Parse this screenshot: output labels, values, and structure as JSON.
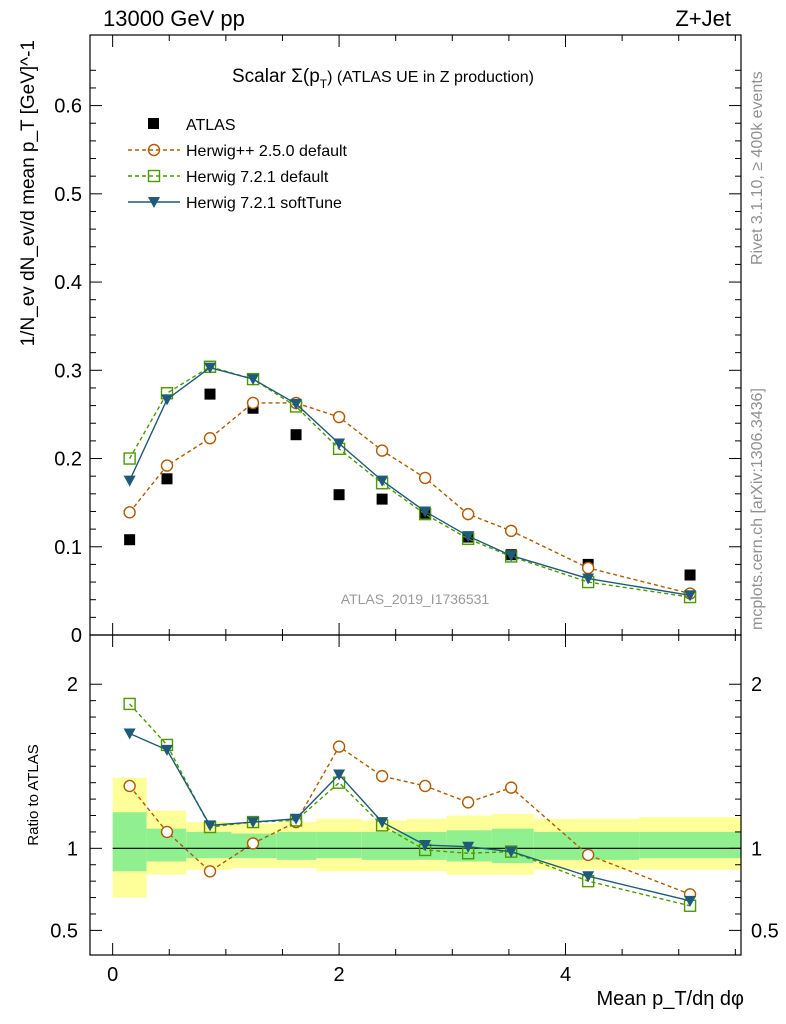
{
  "header": {
    "energy": "13000 GeV pp",
    "process": "Z+Jet"
  },
  "plot": {
    "title_prefix": "Scalar Σ(p",
    "title_sub": "T",
    "title_suffix": ")  (ATLAS UE in Z production)",
    "watermark": "ATLAS_2019_I1736531",
    "rivet_note": "Rivet 3.1.10, ≥ 400k events",
    "mcplots_note": "mcplots.cern.ch [arXiv:1306.3436]"
  },
  "axes": {
    "ylabel_main": "1/N_ev dN_ev/d mean p_T [GeV]^-1",
    "ylabel_ratio": "Ratio to ATLAS",
    "xlabel": "Mean p_T/dη dφ"
  },
  "colors": {
    "atlas": "#000000",
    "h25": "#b35900",
    "h721": "#4d9900",
    "soft": "#1f5a78",
    "band_green": "#90f090",
    "band_yellow": "#ffff99"
  },
  "chart_data": {
    "type": "line",
    "x": [
      0.15,
      0.48,
      0.86,
      1.24,
      1.62,
      2.0,
      2.38,
      2.76,
      3.14,
      3.52,
      4.2,
      5.1
    ],
    "xlim": [
      -0.2,
      5.55
    ],
    "xticks": [
      "0",
      "2",
      "4"
    ],
    "main": {
      "ylim": [
        0,
        0.68
      ],
      "yticks": [
        "0",
        "0.1",
        "0.2",
        "0.3",
        "0.4",
        "0.5",
        "0.6"
      ],
      "series": [
        {
          "name": "ATLAS",
          "values": [
            0.108,
            0.177,
            0.273,
            0.257,
            0.227,
            0.159,
            0.154,
            0.138,
            0.111,
            0.091,
            0.08,
            0.068
          ]
        },
        {
          "name": "Herwig++ 2.5.0 default",
          "values": [
            0.139,
            0.192,
            0.223,
            0.263,
            0.263,
            0.247,
            0.209,
            0.178,
            0.137,
            0.118,
            0.076,
            0.047
          ]
        },
        {
          "name": "Herwig 7.2.1 default",
          "values": [
            0.2,
            0.274,
            0.304,
            0.29,
            0.259,
            0.211,
            0.172,
            0.137,
            0.109,
            0.089,
            0.06,
            0.043
          ]
        },
        {
          "name": "Herwig 7.2.1 softTune",
          "values": [
            0.175,
            0.267,
            0.303,
            0.29,
            0.262,
            0.217,
            0.175,
            0.14,
            0.112,
            0.09,
            0.064,
            0.045
          ]
        }
      ]
    },
    "ratio": {
      "ylim": [
        0.35,
        2.3
      ],
      "yticks": [
        "0.5",
        "1",
        "2"
      ],
      "bands": {
        "edges": [
          0,
          0.3,
          0.65,
          1.05,
          1.45,
          1.8,
          2.2,
          2.6,
          2.95,
          3.35,
          3.72,
          4.65,
          5.55
        ],
        "green": [
          [
            0.86,
            1.22
          ],
          [
            0.92,
            1.12
          ],
          [
            0.94,
            1.1
          ],
          [
            0.94,
            1.09
          ],
          [
            0.93,
            1.1
          ],
          [
            0.94,
            1.1
          ],
          [
            0.93,
            1.1
          ],
          [
            0.93,
            1.1
          ],
          [
            0.92,
            1.11
          ],
          [
            0.91,
            1.12
          ],
          [
            0.93,
            1.1
          ],
          [
            0.94,
            1.1
          ]
        ],
        "yellow": [
          [
            0.7,
            1.43
          ],
          [
            0.84,
            1.23
          ],
          [
            0.87,
            1.16
          ],
          [
            0.88,
            1.15
          ],
          [
            0.88,
            1.16
          ],
          [
            0.86,
            1.18
          ],
          [
            0.86,
            1.17
          ],
          [
            0.86,
            1.18
          ],
          [
            0.84,
            1.2
          ],
          [
            0.84,
            1.21
          ],
          [
            0.87,
            1.18
          ],
          [
            0.87,
            1.19
          ]
        ]
      },
      "series": [
        {
          "name": "Herwig++ 2.5.0 default",
          "values": [
            1.38,
            1.1,
            0.86,
            1.03,
            1.16,
            1.62,
            1.44,
            1.38,
            1.28,
            1.37,
            0.96,
            0.72
          ]
        },
        {
          "name": "Herwig 7.2.1 default",
          "values": [
            1.88,
            1.63,
            1.13,
            1.16,
            1.17,
            1.4,
            1.14,
            0.99,
            0.97,
            0.98,
            0.8,
            0.65
          ]
        },
        {
          "name": "Herwig 7.2.1 softTune",
          "values": [
            1.7,
            1.6,
            1.14,
            1.16,
            1.18,
            1.45,
            1.16,
            1.02,
            1.01,
            0.98,
            0.83,
            0.68
          ]
        }
      ]
    }
  }
}
